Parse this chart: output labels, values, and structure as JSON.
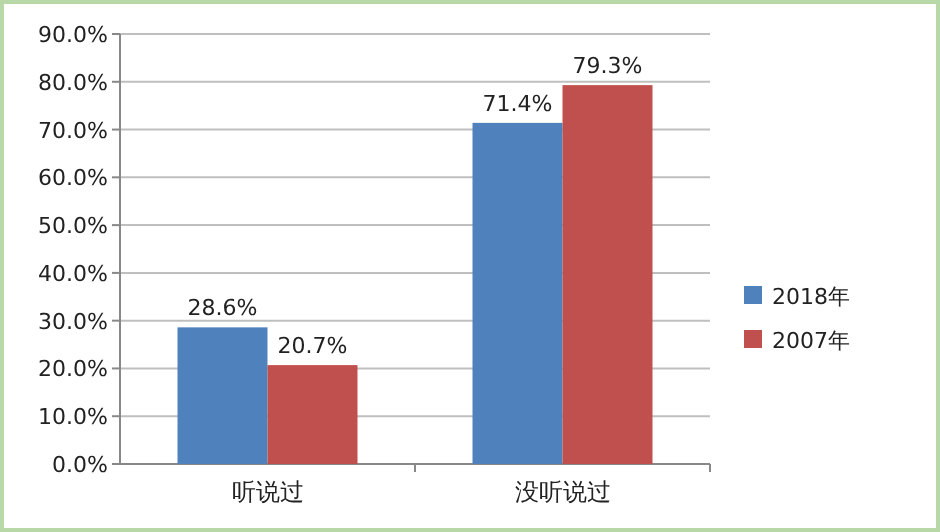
{
  "chart_data": {
    "type": "bar",
    "categories": [
      "听说过",
      "没听说过"
    ],
    "series": [
      {
        "name": "2018年",
        "color": "#4f81bd",
        "values": [
          28.6,
          71.4
        ],
        "value_labels": [
          "28.6%",
          "71.4%"
        ]
      },
      {
        "name": "2007年",
        "color": "#c0504d",
        "values": [
          20.7,
          79.3
        ],
        "value_labels": [
          "20.7%",
          "79.3%"
        ]
      }
    ],
    "ylim": [
      0,
      90
    ],
    "yticks": [
      {
        "value": 0,
        "label": "0.0%"
      },
      {
        "value": 10,
        "label": "10.0%"
      },
      {
        "value": 20,
        "label": "20.0%"
      },
      {
        "value": 30,
        "label": "30.0%"
      },
      {
        "value": 40,
        "label": "40.0%"
      },
      {
        "value": 50,
        "label": "50.0%"
      },
      {
        "value": 60,
        "label": "60.0%"
      },
      {
        "value": 70,
        "label": "70.0%"
      },
      {
        "value": 80,
        "label": "80.0%"
      },
      {
        "value": 90,
        "label": "90.0%"
      }
    ],
    "grid": "y",
    "legend": "right"
  }
}
